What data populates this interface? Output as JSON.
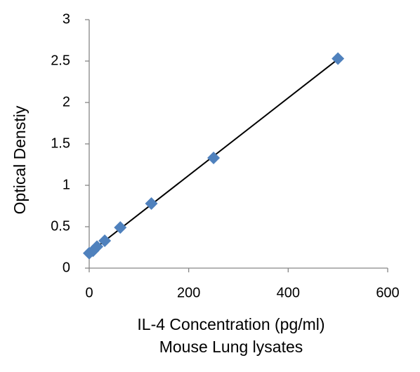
{
  "chart_data": {
    "type": "scatter",
    "x_label": [
      "IL-4 Concentration (pg/ml)",
      "Mouse Lung lysates"
    ],
    "y_label": "Optical Denstiy",
    "series": [
      {
        "color": "#4f81bd",
        "x": [
          0,
          7.8,
          15.6,
          31.25,
          62.5,
          125,
          250,
          500
        ],
        "values": [
          0.18,
          0.21,
          0.26,
          0.33,
          0.49,
          0.78,
          1.33,
          2.53
        ]
      }
    ],
    "trendline": true,
    "trendline_color": "#000000",
    "xlim": [
      0,
      600
    ],
    "xticks": [
      0,
      200,
      400,
      600
    ],
    "ylim": [
      0,
      3
    ],
    "yticks": [
      0,
      0.5,
      1,
      1.5,
      2,
      2.5,
      3
    ],
    "grid": false
  }
}
